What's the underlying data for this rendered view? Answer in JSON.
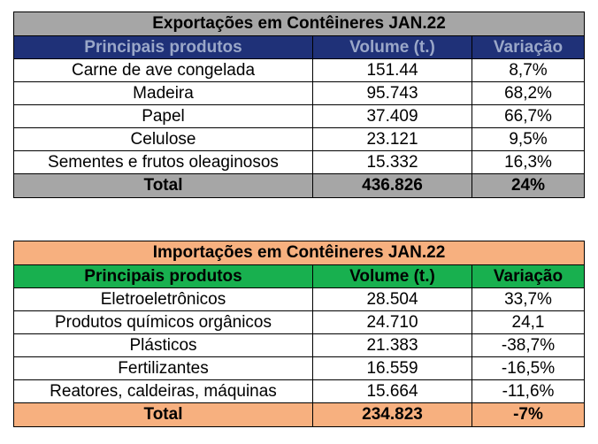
{
  "export": {
    "title": "Exportações em Contêineres JAN.22",
    "headers": [
      "Principais produtos",
      "Volume (t.)",
      "Variação"
    ],
    "rows": [
      {
        "product": "Carne de ave congelada",
        "volume": "151.44",
        "variation": "8,7%"
      },
      {
        "product": "Madeira",
        "volume": "95.743",
        "variation": "68,2%"
      },
      {
        "product": "Papel",
        "volume": "37.409",
        "variation": "66,7%"
      },
      {
        "product": "Celulose",
        "volume": "23.121",
        "variation": "9,5%"
      },
      {
        "product": "Sementes e frutos oleaginosos",
        "volume": "15.332",
        "variation": "16,3%"
      }
    ],
    "total": {
      "label": "Total",
      "volume": "436.826",
      "variation": "24%"
    },
    "colors": {
      "title_bg": "#a6a6a6",
      "header_bg": "#1f3178",
      "header_text": "#9aa7c8",
      "total_bg": "#a6a6a6"
    }
  },
  "import": {
    "title": "Importações em Contêineres JAN.22",
    "headers": [
      "Principais produtos",
      "Volume (t.)",
      "Variação"
    ],
    "rows": [
      {
        "product": "Eletroeletrônicos",
        "volume": "28.504",
        "variation": "33,7%"
      },
      {
        "product": "Produtos químicos orgânicos",
        "volume": "24.710",
        "variation": "24,1"
      },
      {
        "product": "Plásticos",
        "volume": "21.383",
        "variation": "-38,7%"
      },
      {
        "product": "Fertilizantes",
        "volume": "16.559",
        "variation": "-16,5%"
      },
      {
        "product": "Reatores, caldeiras, máquinas",
        "volume": "15.664",
        "variation": "-11,6%"
      }
    ],
    "total": {
      "label": "Total",
      "volume": "234.823",
      "variation": "-7%"
    },
    "colors": {
      "title_bg": "#f7b07f",
      "header_bg": "#18b04f",
      "header_text": "#000000",
      "total_bg": "#f7b07f"
    }
  }
}
